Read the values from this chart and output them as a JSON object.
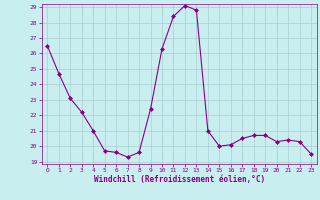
{
  "x": [
    0,
    1,
    2,
    3,
    4,
    5,
    6,
    7,
    8,
    9,
    10,
    11,
    12,
    13,
    14,
    15,
    16,
    17,
    18,
    19,
    20,
    21,
    22,
    23
  ],
  "y": [
    26.5,
    24.7,
    23.1,
    22.2,
    21.0,
    19.7,
    19.6,
    19.3,
    19.6,
    22.4,
    26.3,
    28.4,
    29.1,
    28.8,
    21.0,
    20.0,
    20.1,
    20.5,
    20.7,
    20.7,
    20.3,
    20.4,
    20.3,
    19.5
  ],
  "line_color": "#880088",
  "marker": "D",
  "marker_size": 2.0,
  "bg_color": "#c8eef0",
  "grid_color": "#aacccc",
  "xlabel": "Windchill (Refroidissement éolien,°C)",
  "xlabel_color": "#880088",
  "ylim": [
    19,
    29
  ],
  "yticks": [
    19,
    20,
    21,
    22,
    23,
    24,
    25,
    26,
    27,
    28,
    29
  ],
  "xlim": [
    -0.5,
    23.5
  ],
  "xticks": [
    0,
    1,
    2,
    3,
    4,
    5,
    6,
    7,
    8,
    9,
    10,
    11,
    12,
    13,
    14,
    15,
    16,
    17,
    18,
    19,
    20,
    21,
    22,
    23
  ]
}
